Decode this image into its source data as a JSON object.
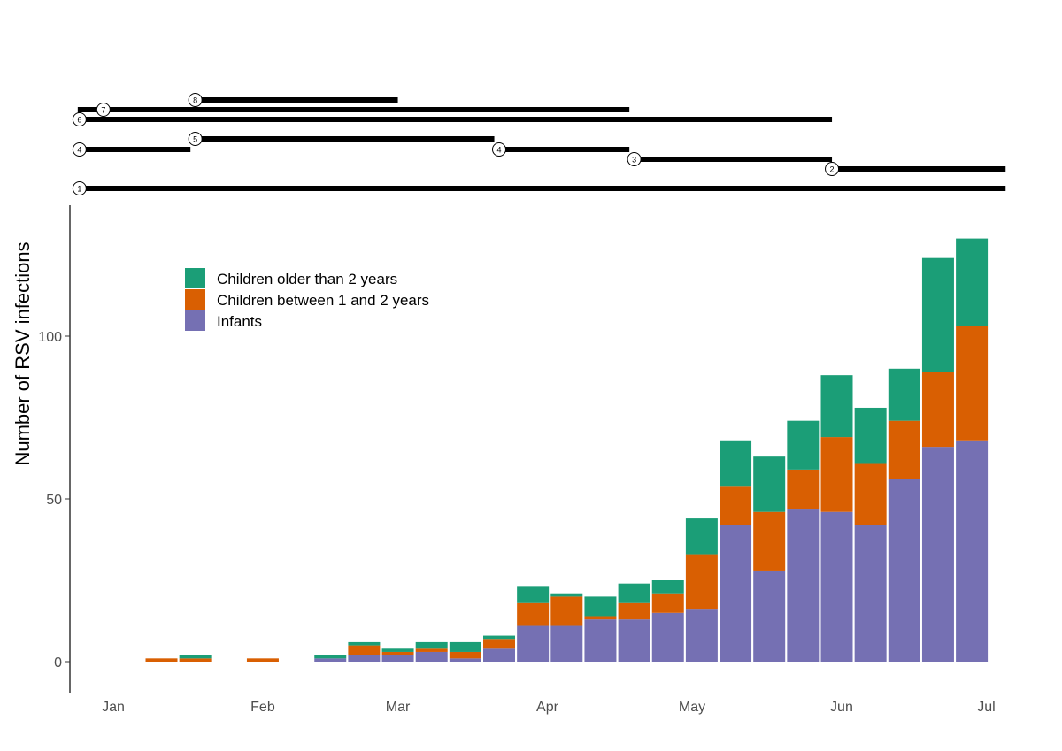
{
  "chart_data": {
    "type": "bar",
    "stacked": true,
    "title": "",
    "xlabel": "",
    "ylabel": "Number of RSV infections",
    "ylim": [
      0,
      130
    ],
    "yticks": [
      0,
      50,
      100
    ],
    "x_unit": "day of year",
    "xticks": [
      {
        "label": "Jan",
        "day": 1
      },
      {
        "label": "Feb",
        "day": 32
      },
      {
        "label": "Mar",
        "day": 60
      },
      {
        "label": "Apr",
        "day": 91
      },
      {
        "label": "May",
        "day": 121
      },
      {
        "label": "Jun",
        "day": 152
      },
      {
        "label": "Jul",
        "day": 182
      }
    ],
    "xlim": [
      -10,
      188
    ],
    "legend_position": "top-left",
    "x": [
      11,
      18,
      25,
      32,
      39,
      46,
      53,
      60,
      67,
      74,
      81,
      88,
      95,
      102,
      109,
      116,
      123,
      130,
      137,
      144,
      151,
      158,
      165,
      172,
      179
    ],
    "series": [
      {
        "name": "Infants",
        "color": "#7570b3",
        "values": [
          0,
          0,
          0,
          0,
          0,
          1,
          2,
          2,
          3,
          1,
          4,
          11,
          11,
          13,
          13,
          15,
          16,
          42,
          28,
          47,
          46,
          42,
          56,
          66,
          68
        ]
      },
      {
        "name": "Children between 1 and 2 years",
        "color": "#d95f02",
        "values": [
          1,
          1,
          0,
          1,
          0,
          0,
          3,
          1,
          1,
          2,
          3,
          7,
          9,
          1,
          5,
          6,
          17,
          12,
          18,
          12,
          23,
          19,
          18,
          23,
          35
        ]
      },
      {
        "name": "Children older than 2 years",
        "color": "#1b9e77",
        "values": [
          0,
          1,
          0,
          0,
          0,
          1,
          1,
          1,
          2,
          3,
          1,
          5,
          1,
          6,
          6,
          4,
          11,
          14,
          17,
          15,
          19,
          17,
          16,
          35,
          27
        ]
      }
    ],
    "legend_order": [
      "Children older than 2 years",
      "Children between 1 and 2 years",
      "Infants"
    ],
    "timeline_segments": [
      {
        "label": "8",
        "row": 0,
        "start": 18,
        "end": 60
      },
      {
        "label": "7",
        "row": 1,
        "start": -6,
        "end": 108,
        "label_at": 0
      },
      {
        "label": "6",
        "row": 2,
        "start": -6,
        "end": 150
      },
      {
        "label": "4",
        "row": 3,
        "start": -6,
        "end": 17
      },
      {
        "label": "5",
        "row": 4,
        "start": 18,
        "end": 80
      },
      {
        "label": "4",
        "row": 3,
        "start": 81,
        "end": 108
      },
      {
        "label": "3",
        "row": 5,
        "start": 109,
        "end": 150
      },
      {
        "label": "2",
        "row": 6,
        "start": 150,
        "end": 186
      },
      {
        "label": "1",
        "row": 7,
        "start": -6,
        "end": 186
      }
    ]
  }
}
